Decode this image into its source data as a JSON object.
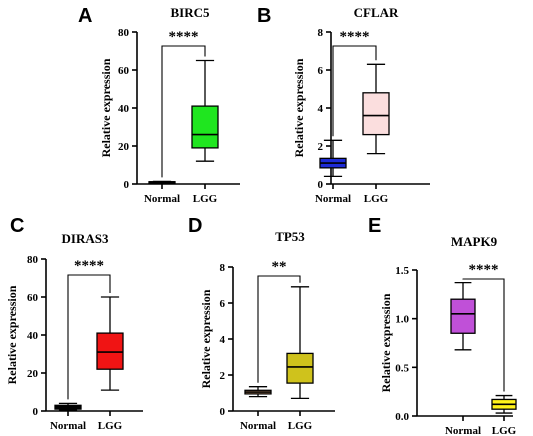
{
  "chart_data": [
    {
      "type": "box",
      "panel_letter": "A",
      "title": "BIRC5",
      "ylabel": "Relative expression",
      "ylim": [
        0,
        80
      ],
      "yticks": [
        0,
        20,
        40,
        60,
        80
      ],
      "categories": [
        "Normal",
        "LGG"
      ],
      "boxes": [
        {
          "category": "Normal",
          "min": 0.5,
          "q1": 0.8,
          "median": 1.0,
          "q3": 1.2,
          "max": 1.4,
          "color": "#000000"
        },
        {
          "category": "LGG",
          "min": 12,
          "q1": 19,
          "median": 26,
          "q3": 41,
          "max": 65,
          "color": "#1fe61f"
        }
      ],
      "significance": "****"
    },
    {
      "type": "box",
      "panel_letter": "B",
      "title": "CFLAR",
      "ylabel": "Relative expression",
      "ylim": [
        0,
        8
      ],
      "yticks": [
        0,
        2,
        4,
        6,
        8
      ],
      "categories": [
        "Normal",
        "LGG"
      ],
      "boxes": [
        {
          "category": "Normal",
          "min": 0.4,
          "q1": 0.85,
          "median": 1.1,
          "q3": 1.35,
          "max": 2.3,
          "color": "#1e2bd6"
        },
        {
          "category": "LGG",
          "min": 1.6,
          "q1": 2.6,
          "median": 3.6,
          "q3": 4.8,
          "max": 6.3,
          "color": "#fbdede"
        }
      ],
      "significance": "****"
    },
    {
      "type": "box",
      "panel_letter": "C",
      "title": "DIRAS3",
      "ylabel": "Relative expression",
      "ylim": [
        0,
        80
      ],
      "yticks": [
        0,
        20,
        40,
        60,
        80
      ],
      "categories": [
        "Normal",
        "LGG"
      ],
      "boxes": [
        {
          "category": "Normal",
          "min": 0.5,
          "q1": 1.0,
          "median": 2.0,
          "q3": 3.0,
          "max": 4.0,
          "color": "#000000"
        },
        {
          "category": "LGG",
          "min": 11,
          "q1": 22,
          "median": 31,
          "q3": 41,
          "max": 60,
          "color": "#f01414"
        }
      ],
      "significance": "****"
    },
    {
      "type": "box",
      "panel_letter": "D",
      "title": "TP53",
      "ylabel": "Relative expression",
      "ylim": [
        0,
        8
      ],
      "yticks": [
        0,
        2,
        4,
        6,
        8
      ],
      "categories": [
        "Normal",
        "LGG"
      ],
      "boxes": [
        {
          "category": "Normal",
          "min": 0.8,
          "q1": 0.95,
          "median": 1.05,
          "q3": 1.15,
          "max": 1.35,
          "color": "#e6aa78"
        },
        {
          "category": "LGG",
          "min": 0.7,
          "q1": 1.55,
          "median": 2.45,
          "q3": 3.2,
          "max": 6.9,
          "color": "#cfc21c"
        }
      ],
      "significance": "**"
    },
    {
      "type": "box",
      "panel_letter": "E",
      "title": "MAPK9",
      "ylabel": "Relative expression",
      "ylim": [
        0,
        1.5
      ],
      "yticks": [
        0.0,
        0.5,
        1.0,
        1.5
      ],
      "yticklabels": [
        "0.0",
        "0.5",
        "1.0",
        "1.5"
      ],
      "categories": [
        "Normal",
        "LGG"
      ],
      "boxes": [
        {
          "category": "Normal",
          "min": 0.68,
          "q1": 0.85,
          "median": 1.05,
          "q3": 1.2,
          "max": 1.37,
          "color": "#c050d8"
        },
        {
          "category": "LGG",
          "min": 0.03,
          "q1": 0.07,
          "median": 0.12,
          "q3": 0.17,
          "max": 0.21,
          "color": "#fff21a"
        }
      ],
      "significance": "****"
    }
  ]
}
